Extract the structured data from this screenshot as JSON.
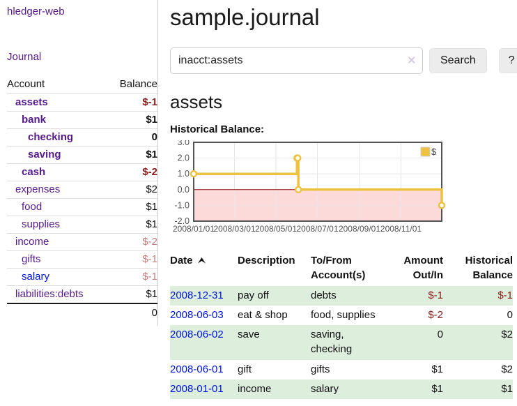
{
  "app": {
    "brand": "hledger-web",
    "nav_journal": "Journal"
  },
  "sidebar": {
    "accounts_header": {
      "account": "Account",
      "balance": "Balance"
    },
    "accounts": [
      {
        "name": "assets",
        "indent": 1,
        "balance": "$-1",
        "bold": true
      },
      {
        "name": "bank",
        "indent": 2,
        "balance": "$1",
        "bold": true
      },
      {
        "name": "checking",
        "indent": 3,
        "balance": "0",
        "bold": true
      },
      {
        "name": "saving",
        "indent": 3,
        "balance": "$1",
        "bold": true
      },
      {
        "name": "cash",
        "indent": 2,
        "balance": "$-2",
        "bold": true
      },
      {
        "name": "expenses",
        "indent": 1,
        "balance": "$2"
      },
      {
        "name": "food",
        "indent": 2,
        "balance": "$1"
      },
      {
        "name": "supplies",
        "indent": 2,
        "balance": "$1"
      },
      {
        "name": "income",
        "indent": 1,
        "balance": "$-2"
      },
      {
        "name": "gifts",
        "indent": 2,
        "balance": "$-1"
      },
      {
        "name": "salary",
        "indent": 2,
        "balance": "$-1",
        "unvisited": true
      },
      {
        "name": "liabilities:debts",
        "indent": 1,
        "balance": "$1"
      }
    ],
    "total": "0"
  },
  "header": {
    "title": "sample.journal"
  },
  "search": {
    "value": "inacct:assets",
    "clear_icon": "✕",
    "button_label": "Search",
    "help_label": "?"
  },
  "account_page": {
    "heading": "assets",
    "chart_title": "Historical Balance:"
  },
  "chart_data": {
    "type": "line",
    "style": "step",
    "title": "Historical Balance:",
    "series": [
      {
        "name": "$",
        "color": "#edc240",
        "points": [
          [
            "2008-01-01",
            1
          ],
          [
            "2008-06-01",
            2
          ],
          [
            "2008-06-02",
            2
          ],
          [
            "2008-06-03",
            0
          ],
          [
            "2008-12-31",
            -1
          ]
        ]
      }
    ],
    "x_range": [
      "2008-01-01",
      "2008-12-31"
    ],
    "ylim": [
      -2,
      3
    ],
    "y_ticks": [
      3.0,
      2.0,
      1.0,
      0.0,
      -1.0,
      -2.0
    ],
    "x_ticks": [
      "2008/01/01",
      "2008/03/01",
      "2008/05/01",
      "2008/07/01",
      "2008/09/01",
      "2008/11/01"
    ],
    "legend": {
      "label": "$",
      "position": "top-right"
    },
    "grid": true,
    "negative_region_color": "#fcdada",
    "zero_line_color": "#8b0000",
    "border_color": "#545454"
  },
  "register": {
    "columns": [
      {
        "label": [
          "Date"
        ],
        "sorted": "asc"
      },
      {
        "label": [
          "Description"
        ]
      },
      {
        "label": [
          "To/From",
          "Account(s)"
        ]
      },
      {
        "label": [
          "Amount",
          "Out/In"
        ],
        "align": "right"
      },
      {
        "label": [
          "Historical",
          "Balance"
        ],
        "align": "right"
      }
    ],
    "rows": [
      {
        "date": "2008-12-31",
        "description": "pay off",
        "accounts": [
          "debts"
        ],
        "amount": "$-1",
        "balance": "$-1"
      },
      {
        "date": "2008-06-03",
        "description": "eat & shop",
        "accounts": [
          "food, supplies"
        ],
        "amount": "$-2",
        "balance": "0"
      },
      {
        "date": "2008-06-02",
        "description": "save",
        "accounts": [
          "saving,",
          "checking"
        ],
        "amount": "0",
        "balance": "$2"
      },
      {
        "date": "2008-06-01",
        "description": "gift",
        "accounts": [
          "gifts"
        ],
        "amount": "$1",
        "balance": "$2"
      },
      {
        "date": "2008-01-01",
        "description": "income",
        "accounts": [
          "salary"
        ],
        "amount": "$1",
        "balance": "$1"
      }
    ]
  }
}
